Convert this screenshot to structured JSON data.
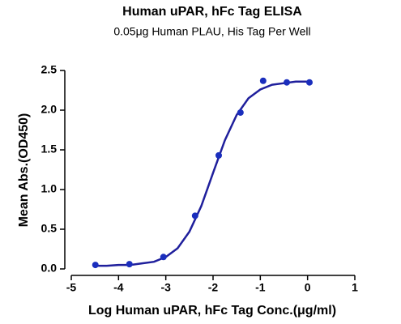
{
  "chart_data": {
    "type": "scatter",
    "title": "Human uPAR, hFc Tag ELISA",
    "subtitle": "0.05μg Human PLAU, His Tag Per Well",
    "xlabel": "Log Human uPAR, hFc Tag Conc.(μg/ml)",
    "ylabel": "Mean Abs.(OD450)",
    "x": [
      -4.49,
      -3.77,
      -3.05,
      -2.38,
      -1.88,
      -1.42,
      -0.94,
      -0.44,
      0.04
    ],
    "values": [
      0.05,
      0.06,
      0.15,
      0.67,
      1.43,
      1.97,
      2.37,
      2.35,
      2.35
    ],
    "color": "#1a2ebd",
    "fit": {
      "x": [
        -4.5,
        -4.25,
        -4.0,
        -3.75,
        -3.5,
        -3.25,
        -3.0,
        -2.75,
        -2.5,
        -2.25,
        -2.0,
        -1.75,
        -1.5,
        -1.25,
        -1.0,
        -0.75,
        -0.5,
        -0.25,
        0.0,
        0.05
      ],
      "values": [
        0.04,
        0.04,
        0.05,
        0.05,
        0.07,
        0.09,
        0.15,
        0.26,
        0.47,
        0.79,
        1.21,
        1.62,
        1.94,
        2.15,
        2.26,
        2.32,
        2.34,
        2.36,
        2.36,
        2.36
      ],
      "color": "#1f1f9c"
    },
    "xlim": [
      -5,
      1
    ],
    "ylim": [
      0,
      2.5
    ],
    "xticks": [
      -5,
      -4,
      -3,
      -2,
      -1,
      0,
      1
    ],
    "yticks": [
      {
        "value": 0,
        "label": "0.0"
      },
      0.5,
      {
        "value": 1,
        "label": "1.0"
      },
      1.5,
      {
        "value": 2,
        "label": "2.0"
      },
      2.5
    ]
  }
}
